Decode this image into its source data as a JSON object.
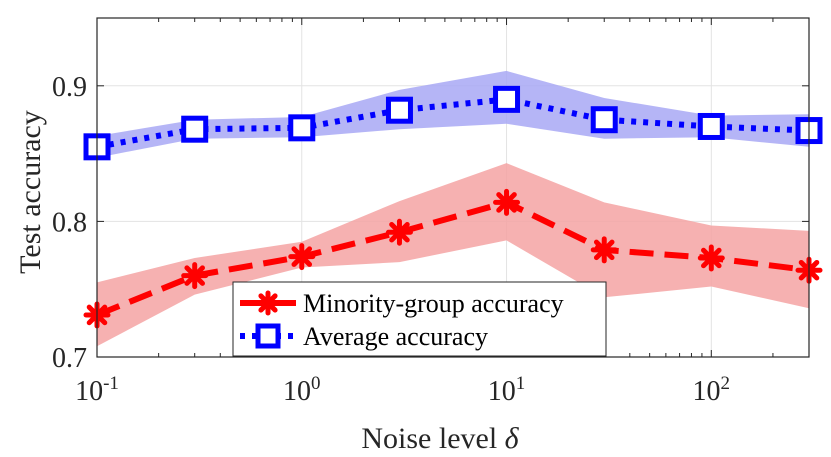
{
  "chart_data": {
    "type": "line",
    "x_scale": "log",
    "x": [
      0.1,
      0.3,
      1,
      3,
      10,
      30,
      100,
      300
    ],
    "xlim": [
      0.1,
      300
    ],
    "ylim": [
      0.7,
      0.95
    ],
    "grid": true,
    "xlabel": "Noise level",
    "xlabel_symbol": "δ",
    "ylabel": "Test accuracy",
    "xticks": [
      {
        "value": 0.1,
        "base": "10",
        "exp": "-1"
      },
      {
        "value": 1,
        "base": "10",
        "exp": "0"
      },
      {
        "value": 10,
        "base": "10",
        "exp": "1"
      },
      {
        "value": 100,
        "base": "10",
        "exp": "2"
      }
    ],
    "yticks": [
      {
        "value": 0.7,
        "label": "0.7"
      },
      {
        "value": 0.8,
        "label": "0.8"
      },
      {
        "value": 0.9,
        "label": "0.9"
      }
    ],
    "legend_position": "bottom-center",
    "series": [
      {
        "name": "Minority-group accuracy",
        "color": "#ff0000",
        "band_color": "#f5a3a3",
        "line_style": "dashed",
        "marker": "asterisk",
        "values": [
          0.731,
          0.76,
          0.774,
          0.792,
          0.814,
          0.779,
          0.773,
          0.764
        ],
        "lower": [
          0.708,
          0.746,
          0.766,
          0.77,
          0.786,
          0.744,
          0.752,
          0.736
        ],
        "upper": [
          0.755,
          0.773,
          0.785,
          0.815,
          0.843,
          0.814,
          0.797,
          0.793
        ]
      },
      {
        "name": "Average accuracy",
        "color": "#0000ff",
        "band_color": "#a8a8f5",
        "line_style": "dotted",
        "marker": "square",
        "values": [
          0.855,
          0.868,
          0.869,
          0.882,
          0.89,
          0.875,
          0.87,
          0.867
        ],
        "lower": [
          0.847,
          0.861,
          0.862,
          0.868,
          0.872,
          0.861,
          0.862,
          0.855
        ],
        "upper": [
          0.863,
          0.875,
          0.877,
          0.897,
          0.911,
          0.891,
          0.878,
          0.879
        ]
      }
    ]
  }
}
